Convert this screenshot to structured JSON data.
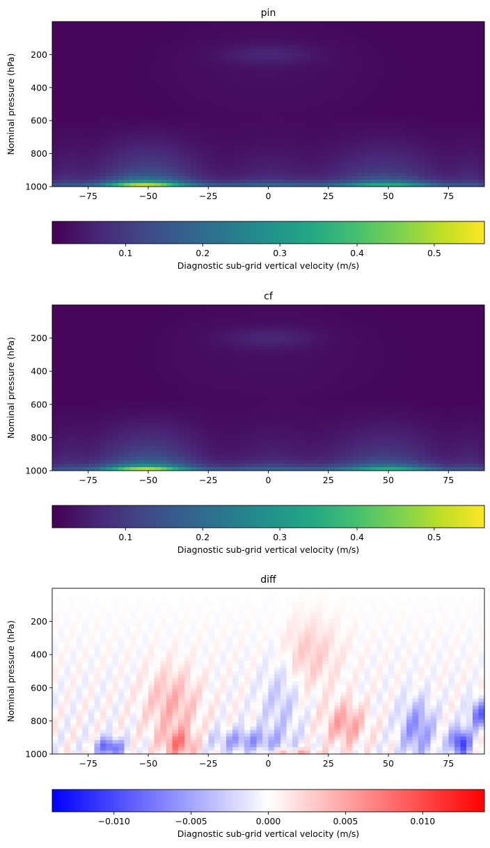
{
  "chart_data": [
    {
      "type": "heatmap",
      "title": "pin",
      "ylabel": "Nominal pressure (hPa)",
      "xlabel": "",
      "x_range": [
        -90,
        90
      ],
      "y_range": [
        0,
        1000
      ],
      "y_inverted": true,
      "x_ticks": [
        -75,
        -50,
        -25,
        0,
        25,
        50,
        75
      ],
      "x_tick_labels": [
        "−75",
        "−50",
        "−25",
        "0",
        "25",
        "50",
        "75"
      ],
      "y_ticks": [
        200,
        400,
        600,
        800,
        1000
      ],
      "y_tick_labels": [
        "200",
        "400",
        "600",
        "800",
        "1000"
      ],
      "colormap": "viridis",
      "colorbar": {
        "label": "Diagnostic sub-grid vertical velocity (m/s)",
        "range": [
          0.005,
          0.565
        ],
        "ticks": [
          0.1,
          0.2,
          0.3,
          0.4,
          0.5
        ],
        "tick_labels": [
          "0.1",
          "0.2",
          "0.3",
          "0.4",
          "0.5"
        ]
      },
      "features": {
        "background": 0.015,
        "surface_max": 0.56,
        "upper_level_max": 0.06
      }
    },
    {
      "type": "heatmap",
      "title": "cf",
      "ylabel": "Nominal pressure (hPa)",
      "xlabel": "",
      "x_range": [
        -90,
        90
      ],
      "y_range": [
        0,
        1000
      ],
      "y_inverted": true,
      "x_ticks": [
        -75,
        -50,
        -25,
        0,
        25,
        50,
        75
      ],
      "x_tick_labels": [
        "−75",
        "−50",
        "−25",
        "0",
        "25",
        "50",
        "75"
      ],
      "y_ticks": [
        200,
        400,
        600,
        800,
        1000
      ],
      "y_tick_labels": [
        "200",
        "400",
        "600",
        "800",
        "1000"
      ],
      "colormap": "viridis",
      "colorbar": {
        "label": "Diagnostic sub-grid vertical velocity (m/s)",
        "range": [
          0.005,
          0.565
        ],
        "ticks": [
          0.1,
          0.2,
          0.3,
          0.4,
          0.5
        ],
        "tick_labels": [
          "0.1",
          "0.2",
          "0.3",
          "0.4",
          "0.5"
        ]
      },
      "features": {
        "background": 0.015,
        "surface_max": 0.56,
        "upper_level_max": 0.06
      }
    },
    {
      "type": "heatmap",
      "title": "diff",
      "ylabel": "Nominal pressure (hPa)",
      "xlabel": "",
      "x_range": [
        -90,
        90
      ],
      "y_range": [
        0,
        1000
      ],
      "y_inverted": true,
      "x_ticks": [
        -75,
        -50,
        -25,
        0,
        25,
        50,
        75
      ],
      "x_tick_labels": [
        "−75",
        "−50",
        "−25",
        "0",
        "25",
        "50",
        "75"
      ],
      "y_ticks": [
        200,
        400,
        600,
        800,
        1000
      ],
      "y_tick_labels": [
        "200",
        "400",
        "600",
        "800",
        "1000"
      ],
      "colormap": "bwr",
      "colorbar": {
        "label": "Diagnostic sub-grid vertical velocity (m/s)",
        "range": [
          -0.014,
          0.014
        ],
        "ticks": [
          -0.01,
          -0.005,
          0,
          0.005,
          0.01
        ],
        "tick_labels": [
          "−0.010",
          "−0.005",
          "0.000",
          "0.005",
          "0.010"
        ]
      },
      "features": {
        "min": -0.013,
        "max": 0.012
      }
    }
  ]
}
